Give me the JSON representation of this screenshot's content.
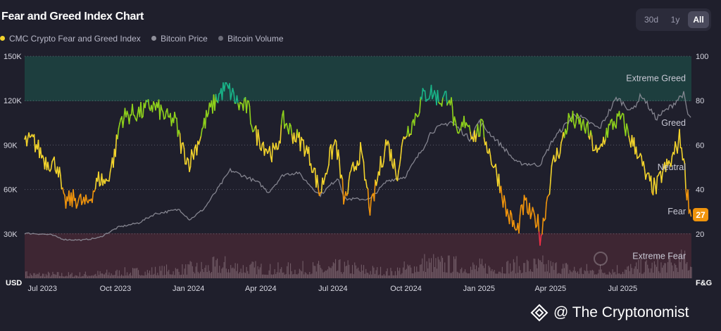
{
  "header": {
    "title": "Fear and Greed Index Chart",
    "ranges": [
      {
        "label": "30d",
        "active": false
      },
      {
        "label": "1y",
        "active": false
      },
      {
        "label": "All",
        "active": true
      }
    ]
  },
  "colors": {
    "background": "#1f1f2c",
    "extreme_greed_zone": "#1d4a44",
    "extreme_fear_zone": "#4a2a36",
    "fear_greed_line_yellow": "#f2d32c",
    "greed_green": "#8fd21c",
    "extreme_greed_teal": "#19b488",
    "fear_orange": "#f0940c",
    "extreme_fear_red": "#ee2f45",
    "price_line": "#8f8f9a",
    "volume_bars": "#7a6570",
    "current_badge": "#f0940c"
  },
  "watermark": {
    "icon": "binance-diamond-icon",
    "text": "@ The Cryptonomist"
  },
  "chart_data": {
    "type": "line",
    "title": "Fear and Greed Index Chart",
    "legend_position": "top-left",
    "grid": true,
    "series_names": [
      "CMC Crypto Fear and Greed Index",
      "Bitcoin Price",
      "Bitcoin Volume"
    ],
    "series_colors": [
      "#f2d32c",
      "#8f8f9a",
      "#6c6c78"
    ],
    "x_ticks": [
      "Jul 2023",
      "Oct 2023",
      "Jan 2024",
      "Apr 2024",
      "Jul 2024",
      "Oct 2024",
      "Jan 2025",
      "Apr 2025",
      "Jul 2025"
    ],
    "x_start": "2023-06-29",
    "x_end": "2025-10-16",
    "left_axis": {
      "unit_label": "USD",
      "ticks": [
        "30K",
        "60K",
        "90K",
        "120K",
        "150K"
      ],
      "tick_values": [
        30000,
        60000,
        90000,
        120000,
        150000
      ],
      "ylim": [
        0,
        150000
      ]
    },
    "right_axis": {
      "unit_label": "F&G",
      "ticks": [
        "20",
        "40",
        "60",
        "80",
        "100"
      ],
      "tick_values": [
        20,
        40,
        60,
        80,
        100
      ],
      "ylim": [
        0,
        100
      ]
    },
    "zone_labels": [
      {
        "label": "Extreme Greed",
        "value": 90
      },
      {
        "label": "Greed",
        "value": 70
      },
      {
        "label": "Neutral",
        "value": 50
      },
      {
        "label": "Fear",
        "value": 30
      },
      {
        "label": "Extreme Fear",
        "value": 10
      }
    ],
    "zones": {
      "extreme_greed": [
        80,
        100
      ],
      "extreme_fear": [
        0,
        20
      ]
    },
    "current_value": "27",
    "series": [
      {
        "name": "CMC Crypto Fear and Greed Index",
        "axis": "right",
        "points": [
          [
            "2023-06-29",
            61
          ],
          [
            "2023-07-10",
            62
          ],
          [
            "2023-07-25",
            53
          ],
          [
            "2023-08-10",
            51
          ],
          [
            "2023-08-17",
            34
          ],
          [
            "2023-09-01",
            36
          ],
          [
            "2023-09-15",
            33
          ],
          [
            "2023-10-01",
            45
          ],
          [
            "2023-10-10",
            43
          ],
          [
            "2023-10-20",
            55
          ],
          [
            "2023-10-28",
            72
          ],
          [
            "2023-11-10",
            74
          ],
          [
            "2023-11-25",
            75
          ],
          [
            "2023-12-05",
            78
          ],
          [
            "2023-12-15",
            76
          ],
          [
            "2023-12-25",
            72
          ],
          [
            "2024-01-05",
            71
          ],
          [
            "2024-01-12",
            60
          ],
          [
            "2024-01-22",
            52
          ],
          [
            "2024-02-01",
            60
          ],
          [
            "2024-02-15",
            74
          ],
          [
            "2024-02-28",
            82
          ],
          [
            "2024-03-08",
            86
          ],
          [
            "2024-03-14",
            84
          ],
          [
            "2024-03-25",
            78
          ],
          [
            "2024-04-05",
            77
          ],
          [
            "2024-04-15",
            65
          ],
          [
            "2024-04-30",
            58
          ],
          [
            "2024-05-10",
            56
          ],
          [
            "2024-05-20",
            71
          ],
          [
            "2024-06-01",
            65
          ],
          [
            "2024-06-15",
            60
          ],
          [
            "2024-06-25",
            52
          ],
          [
            "2024-07-05",
            38
          ],
          [
            "2024-07-15",
            52
          ],
          [
            "2024-07-25",
            62
          ],
          [
            "2024-08-05",
            34
          ],
          [
            "2024-08-15",
            48
          ],
          [
            "2024-08-25",
            57
          ],
          [
            "2024-09-07",
            30
          ],
          [
            "2024-09-15",
            44
          ],
          [
            "2024-09-27",
            62
          ],
          [
            "2024-10-10",
            47
          ],
          [
            "2024-10-20",
            65
          ],
          [
            "2024-10-30",
            70
          ],
          [
            "2024-11-12",
            82
          ],
          [
            "2024-11-22",
            84
          ],
          [
            "2024-12-05",
            80
          ],
          [
            "2024-12-15",
            83
          ],
          [
            "2024-12-25",
            62
          ],
          [
            "2025-01-05",
            72
          ],
          [
            "2025-01-15",
            64
          ],
          [
            "2025-01-25",
            68
          ],
          [
            "2025-02-05",
            55
          ],
          [
            "2025-02-15",
            45
          ],
          [
            "2025-02-25",
            30
          ],
          [
            "2025-03-05",
            25
          ],
          [
            "2025-03-10",
            20
          ],
          [
            "2025-03-15",
            28
          ],
          [
            "2025-03-20",
            34
          ],
          [
            "2025-03-28",
            28
          ],
          [
            "2025-04-05",
            26
          ],
          [
            "2025-04-09",
            18
          ],
          [
            "2025-04-15",
            31
          ],
          [
            "2025-04-25",
            52
          ],
          [
            "2025-05-05",
            60
          ],
          [
            "2025-05-15",
            72
          ],
          [
            "2025-05-25",
            70
          ],
          [
            "2025-06-05",
            68
          ],
          [
            "2025-06-20",
            55
          ],
          [
            "2025-07-01",
            66
          ],
          [
            "2025-07-10",
            70
          ],
          [
            "2025-07-20",
            72
          ],
          [
            "2025-08-01",
            62
          ],
          [
            "2025-08-10",
            57
          ],
          [
            "2025-08-20",
            45
          ],
          [
            "2025-09-01",
            40
          ],
          [
            "2025-09-10",
            48
          ],
          [
            "2025-09-20",
            52
          ],
          [
            "2025-10-01",
            63
          ],
          [
            "2025-10-05",
            57
          ],
          [
            "2025-10-10",
            40
          ],
          [
            "2025-10-16",
            27
          ]
        ]
      },
      {
        "name": "Bitcoin Price",
        "axis": "left",
        "points": [
          [
            "2023-06-29",
            30400
          ],
          [
            "2023-07-15",
            30100
          ],
          [
            "2023-08-01",
            29400
          ],
          [
            "2023-08-18",
            26200
          ],
          [
            "2023-09-10",
            25800
          ],
          [
            "2023-10-01",
            27500
          ],
          [
            "2023-10-25",
            34500
          ],
          [
            "2023-11-20",
            37500
          ],
          [
            "2023-12-10",
            43500
          ],
          [
            "2024-01-10",
            46500
          ],
          [
            "2024-01-23",
            39500
          ],
          [
            "2024-02-10",
            47000
          ],
          [
            "2024-02-28",
            61000
          ],
          [
            "2024-03-14",
            73000
          ],
          [
            "2024-04-05",
            68000
          ],
          [
            "2024-04-20",
            64000
          ],
          [
            "2024-05-01",
            58000
          ],
          [
            "2024-05-20",
            70000
          ],
          [
            "2024-06-07",
            71500
          ],
          [
            "2024-07-05",
            56000
          ],
          [
            "2024-07-28",
            68000
          ],
          [
            "2024-08-05",
            53500
          ],
          [
            "2024-09-06",
            53500
          ],
          [
            "2024-09-28",
            66000
          ],
          [
            "2024-10-20",
            68500
          ],
          [
            "2024-11-12",
            88000
          ],
          [
            "2024-11-22",
            99000
          ],
          [
            "2024-12-17",
            106000
          ],
          [
            "2025-01-10",
            94000
          ],
          [
            "2025-01-21",
            106000
          ],
          [
            "2025-02-25",
            86000
          ],
          [
            "2025-03-10",
            78000
          ],
          [
            "2025-04-08",
            76500
          ],
          [
            "2025-04-25",
            94000
          ],
          [
            "2025-05-22",
            111000
          ],
          [
            "2025-06-22",
            101000
          ],
          [
            "2025-07-14",
            122000
          ],
          [
            "2025-08-02",
            113000
          ],
          [
            "2025-08-14",
            124000
          ],
          [
            "2025-09-01",
            108000
          ],
          [
            "2025-09-20",
            116000
          ],
          [
            "2025-10-06",
            125000
          ],
          [
            "2025-10-11",
            111000
          ],
          [
            "2025-10-16",
            108000
          ]
        ]
      },
      {
        "name": "Bitcoin Volume",
        "axis": "left",
        "note": "volume histogram in lower band",
        "points": [
          [
            "2023-07-01",
            0.18
          ],
          [
            "2023-09-01",
            0.15
          ],
          [
            "2023-11-01",
            0.25
          ],
          [
            "2024-01-10",
            0.35
          ],
          [
            "2024-03-10",
            0.55
          ],
          [
            "2024-05-01",
            0.35
          ],
          [
            "2024-08-05",
            0.45
          ],
          [
            "2024-10-01",
            0.25
          ],
          [
            "2024-11-15",
            0.65
          ],
          [
            "2024-12-15",
            0.55
          ],
          [
            "2025-02-01",
            0.45
          ],
          [
            "2025-04-08",
            0.55
          ],
          [
            "2025-06-01",
            0.35
          ],
          [
            "2025-08-01",
            0.4
          ],
          [
            "2025-10-10",
            0.7
          ]
        ]
      }
    ]
  }
}
